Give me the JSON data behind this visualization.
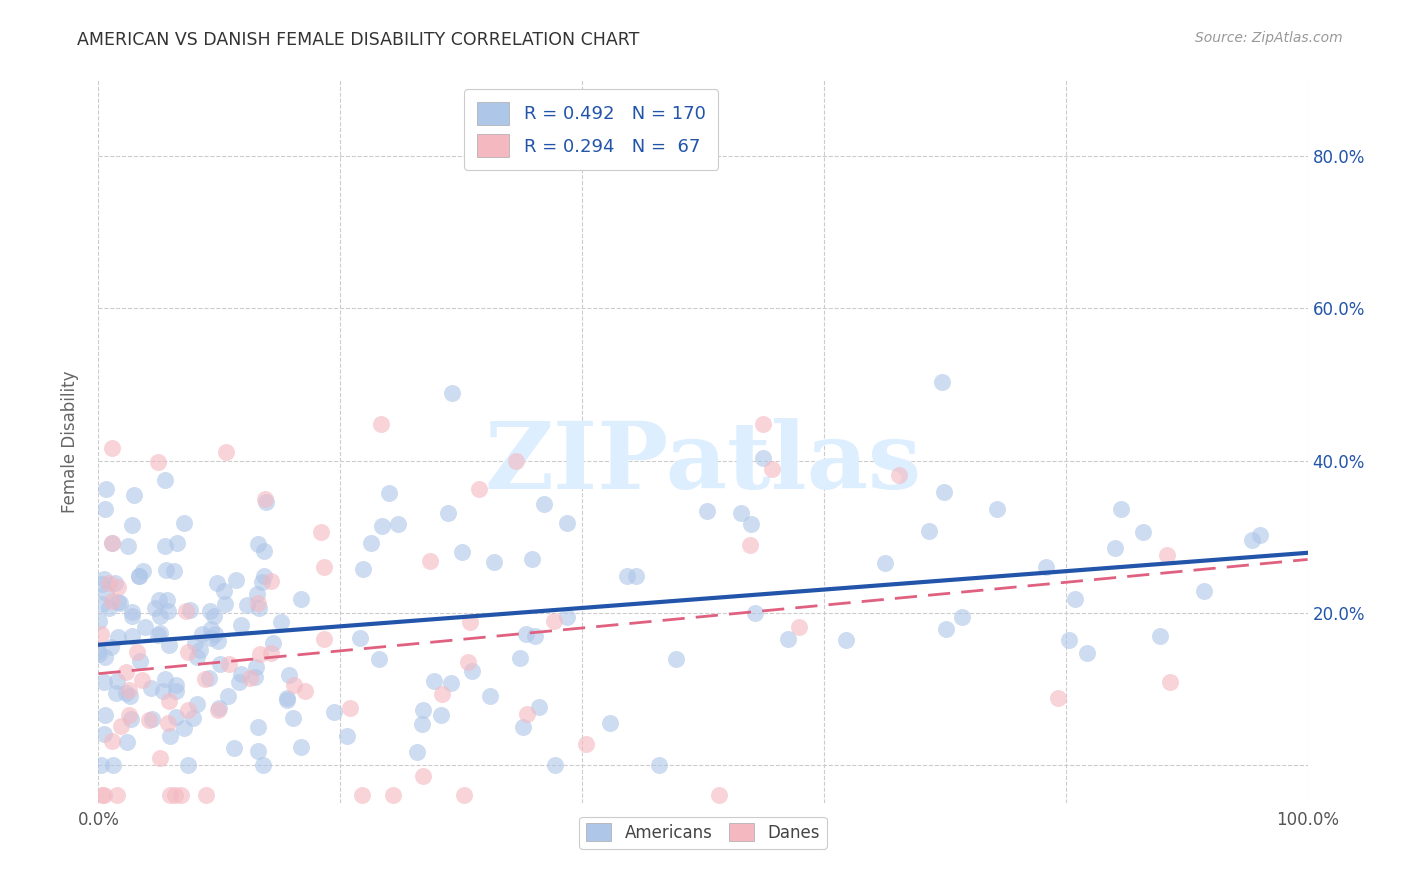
{
  "title": "AMERICAN VS DANISH FEMALE DISABILITY CORRELATION CHART",
  "source": "Source: ZipAtlas.com",
  "ylabel": "Female Disability",
  "xlim": [
    0.0,
    1.0
  ],
  "ylim": [
    -0.05,
    0.9
  ],
  "xticks": [
    0.0,
    0.2,
    0.4,
    0.6,
    0.8,
    1.0
  ],
  "xticklabels": [
    "0.0%",
    "",
    "",
    "",
    "",
    "100.0%"
  ],
  "yticks": [
    0.0,
    0.2,
    0.4,
    0.6,
    0.8
  ],
  "yticklabels_left": [
    "",
    "",
    "",
    "",
    ""
  ],
  "yticklabels_right": [
    "",
    "20.0%",
    "40.0%",
    "60.0%",
    "80.0%"
  ],
  "legend_label1": "R = 0.492   N = 170",
  "legend_label2": "R = 0.294   N =  67",
  "americans_color": "#aec6e8",
  "danes_color": "#f4b8c1",
  "americans_line_color": "#2255aa",
  "danes_line_color": "#e06080",
  "right_tick_color": "#2255aa",
  "background_color": "#ffffff",
  "grid_color": "#cccccc",
  "watermark_text": "ZIPatlas",
  "watermark_color": "#ddeeff",
  "bottom_legend_label1": "Americans",
  "bottom_legend_label2": "Danes",
  "americans_intercept": 0.135,
  "americans_slope": 0.225,
  "danes_intercept": 0.115,
  "danes_slope": 0.215
}
